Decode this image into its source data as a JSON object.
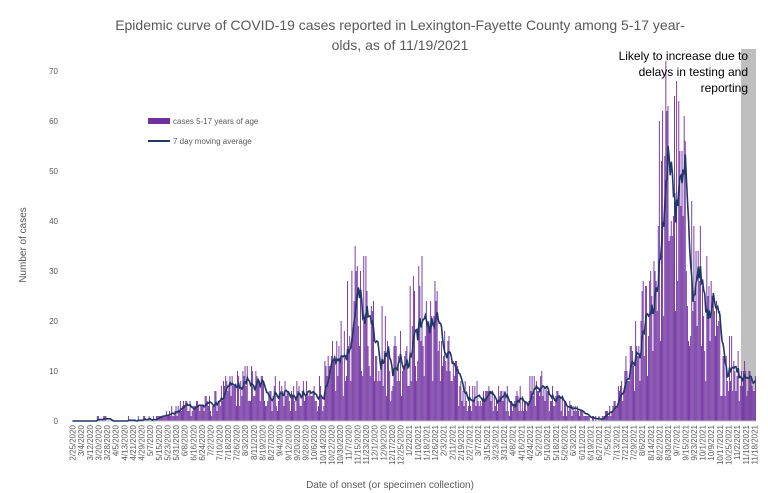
{
  "chart_data": {
    "type": "bar",
    "title_lines": [
      "Epidemic curve of COVID-19 cases reported in Lexington-Fayette County among 5-17 year-",
      "olds, as of 11/19/2021"
    ],
    "xlabel": "Date of onset (or specimen collection)",
    "ylabel": "Number of cases",
    "ylim": [
      0,
      70
    ],
    "y_ticks": [
      "0",
      "10",
      "20",
      "30",
      "40",
      "50",
      "60",
      "70"
    ],
    "grid": false,
    "legend_position": "top-left",
    "x_start": "2/25/2020",
    "x_end": "11/19/2021",
    "x_ticks": [
      "2/25/2020",
      "3/4/2020",
      "3/12/2020",
      "3/20/2020",
      "3/28/2020",
      "4/5/2020",
      "4/13/2020",
      "4/21/2020",
      "4/29/2020",
      "5/7/2020",
      "5/15/2020",
      "5/23/2020",
      "5/31/2020",
      "6/8/2020",
      "6/16/2020",
      "6/24/2020",
      "7/2/2020",
      "7/10/2020",
      "7/18/2020",
      "7/26/2020",
      "8/3/2020",
      "8/11/2020",
      "8/19/2020",
      "8/27/2020",
      "9/4/2020",
      "9/12/2020",
      "9/20/2020",
      "9/28/2020",
      "10/6/2020",
      "10/14/2020",
      "10/22/2020",
      "10/30/2020",
      "11/7/2020",
      "11/15/2020",
      "11/23/2020",
      "12/1/2020",
      "12/9/2020",
      "12/17/2020",
      "12/25/2020",
      "1/2/2021",
      "1/10/2021",
      "1/18/2021",
      "1/26/2021",
      "2/3/2021",
      "2/11/2021",
      "2/19/2021",
      "2/27/2021",
      "3/7/2021",
      "3/15/2021",
      "3/23/2021",
      "3/31/2021",
      "4/8/2021",
      "4/16/2021",
      "4/24/2021",
      "5/2/2021",
      "5/10/2021",
      "5/18/2021",
      "5/26/2021",
      "6/3/2021",
      "6/11/2021",
      "6/19/2021",
      "6/27/2021",
      "7/5/2021",
      "7/13/2021",
      "7/21/2021",
      "7/29/2021",
      "8/6/2021",
      "8/14/2021",
      "8/22/2021",
      "8/30/2021",
      "9/7/2021",
      "9/15/2021",
      "9/23/2021",
      "10/1/2021",
      "10/9/2021",
      "10/17/2021",
      "10/25/2021",
      "11/2/2021",
      "11/10/2021",
      "11/18/2021"
    ],
    "trend_keypoints": [
      [
        "2/25/2020",
        0
      ],
      [
        "3/25/2020",
        0.2
      ],
      [
        "5/10/2020",
        0.5
      ],
      [
        "5/25/2020",
        1.5
      ],
      [
        "6/10/2020",
        3
      ],
      [
        "6/25/2020",
        3
      ],
      [
        "7/5/2020",
        3.5
      ],
      [
        "7/20/2020",
        6
      ],
      [
        "8/5/2020",
        7
      ],
      [
        "8/20/2020",
        6
      ],
      [
        "9/5/2020",
        5.5
      ],
      [
        "9/20/2020",
        4.5
      ],
      [
        "10/5/2020",
        5
      ],
      [
        "10/20/2020",
        8
      ],
      [
        "11/1/2020",
        13
      ],
      [
        "11/10/2020",
        19
      ],
      [
        "11/17/2020",
        23
      ],
      [
        "11/25/2020",
        21
      ],
      [
        "12/5/2020",
        17
      ],
      [
        "12/15/2020",
        11
      ],
      [
        "12/25/2020",
        13
      ],
      [
        "1/5/2021",
        18
      ],
      [
        "1/15/2021",
        20
      ],
      [
        "1/25/2021",
        19
      ],
      [
        "2/5/2021",
        12
      ],
      [
        "2/15/2021",
        7
      ],
      [
        "2/25/2021",
        5
      ],
      [
        "3/10/2021",
        4.5
      ],
      [
        "3/25/2021",
        4.5
      ],
      [
        "4/10/2021",
        4
      ],
      [
        "4/25/2021",
        5.5
      ],
      [
        "5/5/2021",
        6.5
      ],
      [
        "5/15/2021",
        5
      ],
      [
        "5/25/2021",
        3
      ],
      [
        "6/5/2021",
        2
      ],
      [
        "6/20/2021",
        0.5
      ],
      [
        "7/1/2021",
        1
      ],
      [
        "7/10/2021",
        2
      ],
      [
        "7/20/2021",
        7
      ],
      [
        "7/30/2021",
        11
      ],
      [
        "8/10/2021",
        20
      ],
      [
        "8/20/2021",
        35
      ],
      [
        "8/27/2021",
        44
      ],
      [
        "9/1/2021",
        46
      ],
      [
        "9/8/2021",
        42
      ],
      [
        "9/15/2021",
        36
      ],
      [
        "9/22/2021",
        30
      ],
      [
        "10/1/2021",
        22
      ],
      [
        "10/10/2021",
        17
      ],
      [
        "10/20/2021",
        13
      ],
      [
        "10/30/2021",
        11
      ],
      [
        "11/8/2021",
        9.5
      ],
      [
        "11/19/2021",
        8
      ]
    ],
    "series": [
      {
        "name": "cases 5-17 years of age",
        "type": "bar",
        "color": "#7030A0",
        "peak": {
          "date": "8/30/2021",
          "value": 63
        }
      },
      {
        "name": "7 day moving average",
        "type": "line",
        "color": "#1F3864"
      }
    ],
    "annotation": {
      "lines": [
        "Likely to increase due to",
        "delays in testing and",
        "reporting"
      ],
      "shaded_from": "11/6/2021",
      "shaded_to": "11/19/2021",
      "shade_color": "#BFBFBF"
    }
  }
}
